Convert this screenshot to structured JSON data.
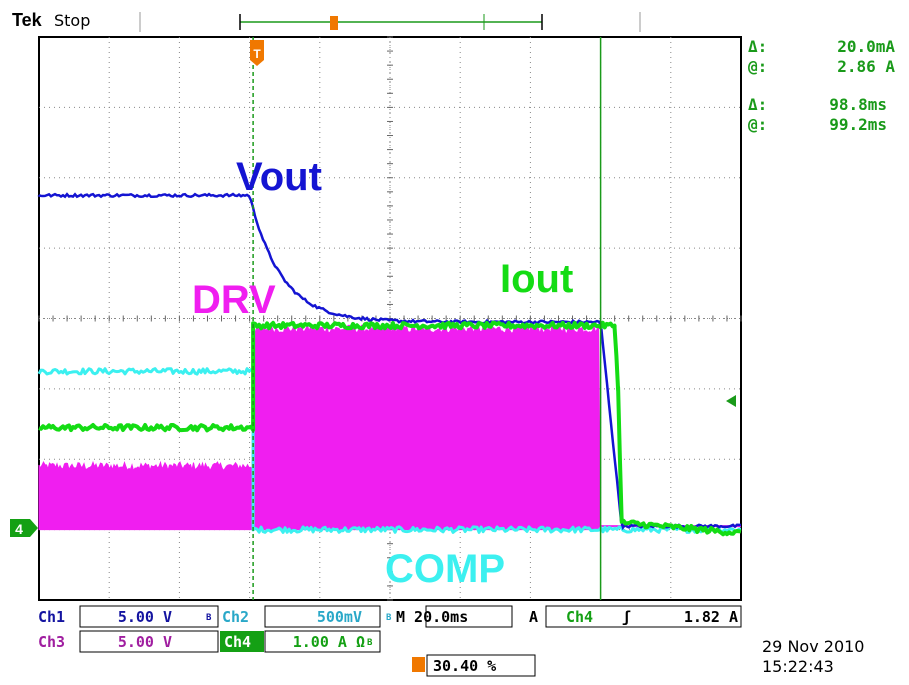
{
  "header": {
    "brand": "Tek",
    "status": "Stop"
  },
  "cursor_readout": {
    "current_delta_label": "Δ:",
    "current_delta_value": "20.0mA",
    "current_at_label": "@:",
    "current_at_value": "2.86 A",
    "time_delta_label": "Δ:",
    "time_delta_value": "98.8ms",
    "time_at_label": "@:",
    "time_at_value": "99.2ms"
  },
  "trace_labels": {
    "vout": "Vout",
    "drv": "DRV",
    "iout": "Iout",
    "comp": "COMP"
  },
  "markers": {
    "trigger_glyph": "T",
    "ch4_ground": "4"
  },
  "settings": {
    "ch1_label": "Ch1",
    "ch1_scale": "5.00 V",
    "ch2_label": "Ch2",
    "ch2_scale": "500mV",
    "ch3_label": "Ch3",
    "ch3_scale": "5.00 V",
    "ch4_label": "Ch4",
    "ch4_scale": "1.00 A Ω",
    "bw_glyph": "B",
    "timebase": "M 20.0ms",
    "trigger_mode": "A",
    "trigger_source": "Ch4",
    "trigger_slope": "ʃ",
    "trigger_level": "1.82 A",
    "trigger_position": "30.40 %"
  },
  "datetime": {
    "date": "29 Nov 2010",
    "time": "15:22:43"
  },
  "colors": {
    "ch1": "#1414d2",
    "ch2": "#3cf0f0",
    "ch3": "#f01ef0",
    "ch4": "#14dc14",
    "cursor": "#1a9a1a",
    "trigger": "#f07800",
    "ch1_text": "#1414a0",
    "ch3_text": "#a01ea0"
  },
  "chart_data": {
    "type": "line",
    "x_divisions": 10,
    "y_divisions": 8,
    "time_per_div_ms": 20,
    "trigger_position_percent": 30.4,
    "grid": true,
    "series": [
      {
        "name": "Vout",
        "channel": "Ch1",
        "volts_per_div": 5.0,
        "x_div": [
          0,
          3.0,
          3.2,
          3.5,
          3.9,
          4.4,
          5.0,
          8.0,
          8.25,
          8.3,
          10
        ],
        "y_div": [
          1.75,
          1.75,
          1.2,
          0.5,
          0.05,
          -0.05,
          -0.05,
          -0.05,
          -1.0,
          -2.95,
          -2.95
        ]
      },
      {
        "name": "COMP",
        "channel": "Ch2",
        "volts_per_div": 0.5,
        "x_div": [
          0,
          3.05,
          3.05,
          10
        ],
        "y_div": [
          -0.75,
          -0.75,
          -3.0,
          -3.0
        ]
      },
      {
        "name": "DRV",
        "channel": "Ch3",
        "volts_per_div": 5.0,
        "x_div": [
          0,
          3.05,
          3.05,
          8.0,
          8.0,
          10
        ],
        "y_div": [
          -2.1,
          -2.1,
          -0.15,
          -0.15,
          -2.95,
          -2.95
        ]
      },
      {
        "name": "Iout",
        "channel": "Ch4",
        "amps_per_div": 1.0,
        "x_div": [
          0,
          3.05,
          3.05,
          8.2,
          8.25,
          8.3,
          10
        ],
        "y_div": [
          -1.55,
          -1.55,
          -0.1,
          -0.1,
          -1.0,
          -2.9,
          -3.05
        ]
      }
    ],
    "cursors": {
      "vertical_x_div": [
        3.05,
        8.0
      ]
    }
  }
}
